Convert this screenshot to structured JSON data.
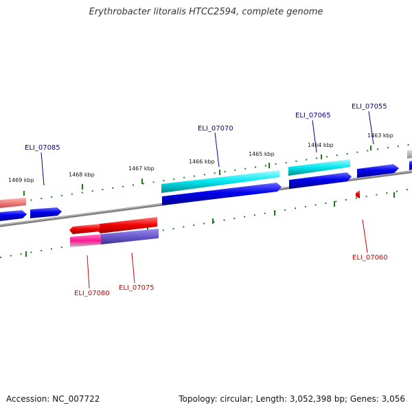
{
  "header": {
    "title": "Erythrobacter litoralis HTCC2594, complete genome"
  },
  "footer": {
    "accession": "Accession: NC_007722",
    "summary": "Topology: circular; Length: 3,052,398 bp; Genes: 3,056"
  },
  "scale": {
    "ticks": [
      {
        "label": "1463 kbp"
      },
      {
        "label": "1464 kbp"
      },
      {
        "label": "1465 kbp"
      },
      {
        "label": "1466 kbp"
      },
      {
        "label": "1467 kbp"
      },
      {
        "label": "1468 kbp"
      },
      {
        "label": "1469 kbp"
      }
    ]
  },
  "genes": {
    "forward": [
      {
        "label": "ELI_07055",
        "color": "#00008b"
      },
      {
        "label": "ELI_07065",
        "color": "#00008b"
      },
      {
        "label": "ELI_07070",
        "color": "#00008b"
      },
      {
        "label": "ELI_07085",
        "color": "#00008b"
      }
    ],
    "reverse": [
      {
        "label": "ELI_07060",
        "color": "#cc0000"
      },
      {
        "label": "ELI_07075",
        "color": "#cc0000"
      },
      {
        "label": "ELI_07080",
        "color": "#cc0000"
      }
    ]
  },
  "colors": {
    "backbone": "#808080",
    "forward_cds": "#0000dd",
    "forward_rna": "#00e0e0",
    "reverse_cds": "#ee0000",
    "reverse_rna_pink": "#ff1493",
    "reverse_rna_purple": "#6a5acd",
    "ticks": "#1a7a1a"
  }
}
